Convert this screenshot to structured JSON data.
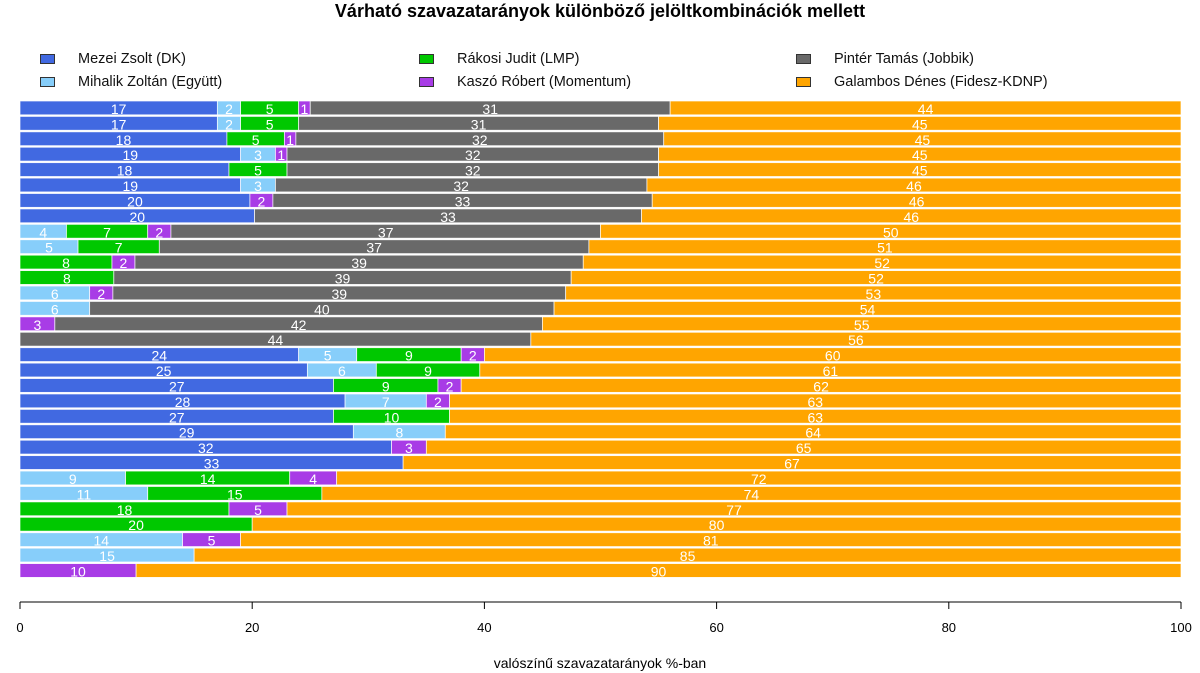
{
  "chart_data": {
    "type": "bar",
    "orientation": "horizontal",
    "stacked": true,
    "title": "Várható szavazatarányok különböző jelöltkombinációk mellett",
    "xlabel": "valószínű szavazatarányok %-ban",
    "ylabel": "",
    "xlim": [
      0,
      100
    ],
    "xticks": [
      0,
      20,
      40,
      60,
      80,
      100
    ],
    "grid": false,
    "legend_position": "top",
    "series": [
      {
        "name": "Mezei Zsolt (DK)",
        "color": "#4169e1",
        "values": [
          17,
          17,
          18,
          19,
          18,
          19,
          20,
          20,
          null,
          null,
          null,
          null,
          null,
          null,
          null,
          null,
          24,
          25,
          27,
          28,
          27,
          29,
          32,
          33,
          null,
          null,
          null,
          null,
          null,
          null,
          null
        ]
      },
      {
        "name": "Mihalik Zoltán (Együtt)",
        "color": "#87cefa",
        "values": [
          2,
          2,
          null,
          3,
          null,
          3,
          null,
          null,
          4,
          5,
          null,
          null,
          6,
          6,
          null,
          null,
          5,
          6,
          null,
          7,
          null,
          8,
          null,
          null,
          9,
          11,
          null,
          null,
          14,
          15,
          null
        ]
      },
      {
        "name": "Rákosi Judit (LMP)",
        "color": "#00c800",
        "values": [
          5,
          5,
          5,
          null,
          5,
          null,
          null,
          null,
          7,
          7,
          8,
          8,
          null,
          null,
          null,
          null,
          9,
          9,
          9,
          null,
          10,
          null,
          null,
          null,
          14,
          15,
          18,
          20,
          null,
          null,
          null
        ]
      },
      {
        "name": "Kaszó Róbert (Momentum)",
        "color": "#a83ce6",
        "values": [
          1,
          null,
          1,
          1,
          null,
          null,
          2,
          null,
          2,
          null,
          2,
          null,
          2,
          null,
          3,
          null,
          2,
          null,
          2,
          2,
          null,
          null,
          3,
          null,
          4,
          null,
          5,
          null,
          5,
          null,
          10
        ]
      },
      {
        "name": "Pintér Tamás (Jobbik)",
        "color": "#696969",
        "values": [
          31,
          31,
          32,
          32,
          32,
          32,
          33,
          33,
          37,
          37,
          39,
          39,
          39,
          40,
          42,
          44,
          null,
          null,
          null,
          null,
          null,
          null,
          null,
          null,
          null,
          null,
          null,
          null,
          null,
          null,
          null
        ]
      },
      {
        "name": "Galambos Dénes (Fidesz-KDNP)",
        "color": "#ffa500",
        "values": [
          44,
          45,
          45,
          45,
          45,
          46,
          46,
          46,
          50,
          51,
          52,
          52,
          53,
          54,
          55,
          56,
          60,
          61,
          62,
          63,
          63,
          64,
          65,
          67,
          72,
          74,
          77,
          80,
          81,
          85,
          90
        ]
      }
    ]
  }
}
